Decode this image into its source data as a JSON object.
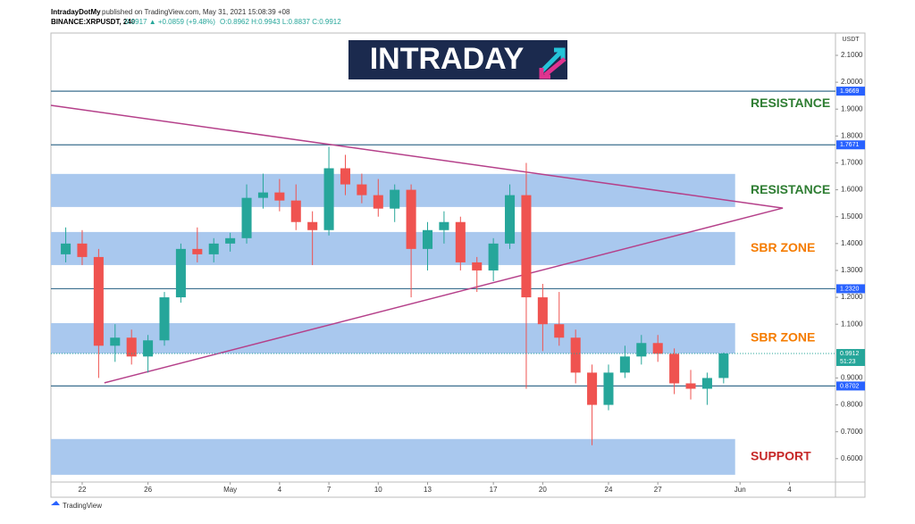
{
  "header": {
    "author": "IntradayDotMy",
    "published": "published on TradingView.com, May 31, 2021 15:08:39 +08",
    "symbol": "BINANCE:XRPUSDT, 240",
    "last": "0.9917 ▲ +0.0859 (+9.48%)",
    "ohlc": "O:0.8962 H:0.9943 L:0.8837 C:0.9912"
  },
  "logo": "INTRADAY",
  "footer": "TradingView",
  "chart_data": {
    "type": "candlestick",
    "currency": "USDT",
    "x": [
      -1,
      0,
      1,
      2,
      3,
      4,
      5,
      6,
      7,
      8,
      9,
      10,
      11,
      12,
      13,
      14,
      15,
      16,
      17,
      18,
      19,
      20,
      21,
      22,
      23,
      24,
      25,
      26,
      27,
      28,
      29,
      30,
      31,
      32,
      33,
      34,
      35,
      36,
      37,
      38,
      39
    ],
    "open": [
      1.36,
      1.4,
      1.35,
      1.02,
      1.05,
      0.98,
      1.04,
      1.2,
      1.38,
      1.36,
      1.4,
      1.42,
      1.57,
      1.59,
      1.56,
      1.48,
      1.45,
      1.68,
      1.62,
      1.58,
      1.53,
      1.6,
      1.38,
      1.45,
      1.48,
      1.33,
      1.3,
      1.4,
      1.58,
      1.2,
      1.1,
      1.05,
      0.92,
      0.8,
      0.92,
      0.98,
      1.03,
      0.99,
      0.88,
      0.86,
      0.9
    ],
    "high": [
      1.46,
      1.45,
      1.38,
      1.1,
      1.08,
      1.06,
      1.22,
      1.4,
      1.46,
      1.42,
      1.44,
      1.62,
      1.66,
      1.64,
      1.62,
      1.52,
      1.76,
      1.73,
      1.66,
      1.64,
      1.62,
      1.62,
      1.48,
      1.52,
      1.5,
      1.35,
      1.42,
      1.62,
      1.7,
      1.25,
      1.22,
      1.08,
      0.95,
      0.95,
      1.02,
      1.06,
      1.06,
      1.01,
      0.93,
      0.92,
      0.9943
    ],
    "low": [
      1.33,
      1.32,
      0.9,
      0.96,
      0.95,
      0.92,
      1.02,
      1.18,
      1.33,
      1.33,
      1.37,
      1.4,
      1.53,
      1.52,
      1.45,
      1.32,
      1.43,
      1.58,
      1.55,
      1.5,
      1.48,
      1.2,
      1.3,
      1.4,
      1.3,
      1.22,
      1.26,
      1.38,
      0.86,
      1.0,
      1.02,
      0.88,
      0.65,
      0.78,
      0.9,
      0.95,
      0.96,
      0.84,
      0.82,
      0.8,
      0.88
    ],
    "close": [
      1.4,
      1.35,
      1.02,
      1.05,
      0.98,
      1.04,
      1.2,
      1.38,
      1.36,
      1.4,
      1.42,
      1.57,
      1.59,
      1.56,
      1.48,
      1.45,
      1.68,
      1.62,
      1.58,
      1.53,
      1.6,
      1.38,
      1.45,
      1.48,
      1.33,
      1.3,
      1.4,
      1.58,
      1.2,
      1.1,
      1.05,
      0.92,
      0.8,
      0.92,
      0.98,
      1.03,
      0.99,
      0.88,
      0.86,
      0.9,
      0.9912
    ],
    "up_color": "#26a69a",
    "down_color": "#ef5350",
    "xlim": [
      -1.9,
      45.8
    ],
    "xticks": [
      {
        "value": 0,
        "label": "22"
      },
      {
        "value": 4,
        "label": "26"
      },
      {
        "value": 9,
        "label": "May"
      },
      {
        "value": 12,
        "label": "4"
      },
      {
        "value": 15,
        "label": "7"
      },
      {
        "value": 18,
        "label": "10"
      },
      {
        "value": 21,
        "label": "13"
      },
      {
        "value": 25,
        "label": "17"
      },
      {
        "value": 28,
        "label": "20"
      },
      {
        "value": 32,
        "label": "24"
      },
      {
        "value": 35,
        "label": "27"
      },
      {
        "value": 40,
        "label": "Jun"
      },
      {
        "value": 43,
        "label": "4"
      }
    ],
    "ylim": [
      0.513,
      2.183
    ],
    "yticks": [
      {
        "value": 2.1,
        "label": "2.1000"
      },
      {
        "value": 2.0,
        "label": "2.0000"
      },
      {
        "value": 1.9,
        "label": "1.9000"
      },
      {
        "value": 1.8,
        "label": "1.8000"
      },
      {
        "value": 1.7,
        "label": "1.7000"
      },
      {
        "value": 1.6,
        "label": "1.6000"
      },
      {
        "value": 1.5,
        "label": "1.5000"
      },
      {
        "value": 1.4,
        "label": "1.4000"
      },
      {
        "value": 1.3,
        "label": "1.3000"
      },
      {
        "value": 1.2,
        "label": "1.2000"
      },
      {
        "value": 1.1,
        "label": "1.1000"
      },
      {
        "value": 0.9,
        "label": "0.9000"
      },
      {
        "value": 0.8,
        "label": "0.8000"
      },
      {
        "value": 0.7,
        "label": "0.7000"
      },
      {
        "value": 0.6,
        "label": "0.6000"
      }
    ],
    "levels": [
      1.9669,
      1.7671,
      {
        "value": 1.232,
        "label": "1.2320"
      },
      0.8702
    ],
    "level_color": "#3b6f8f",
    "zones": [
      {
        "low": 1.536,
        "high": 1.659,
        "label": "RESISTANCE",
        "color": "#2e7d32"
      },
      {
        "low": 1.32,
        "high": 1.443,
        "label": "SBR ZONE",
        "color": "#f57c00"
      },
      {
        "low": 0.991,
        "high": 1.104,
        "label": "SBR ZONE",
        "color": "#f57c00"
      },
      {
        "low": 0.54,
        "high": 0.673,
        "label": "SUPPORT",
        "color": "#c62828"
      }
    ],
    "zone_end": 39.7,
    "zone_fill": "#a9c8ee",
    "top_label": {
      "value": 1.9669,
      "label": "RESISTANCE",
      "color": "#2e7d32"
    },
    "trendlines": [
      {
        "x": [
          -1.9,
          42.6
        ],
        "y": [
          1.914,
          1.532
        ]
      },
      {
        "x": [
          1.35,
          42.6
        ],
        "y": [
          0.882,
          1.532
        ]
      }
    ],
    "trend_color": "#b5408a",
    "price": {
      "value": 0.9912,
      "countdown": "51:23"
    }
  }
}
